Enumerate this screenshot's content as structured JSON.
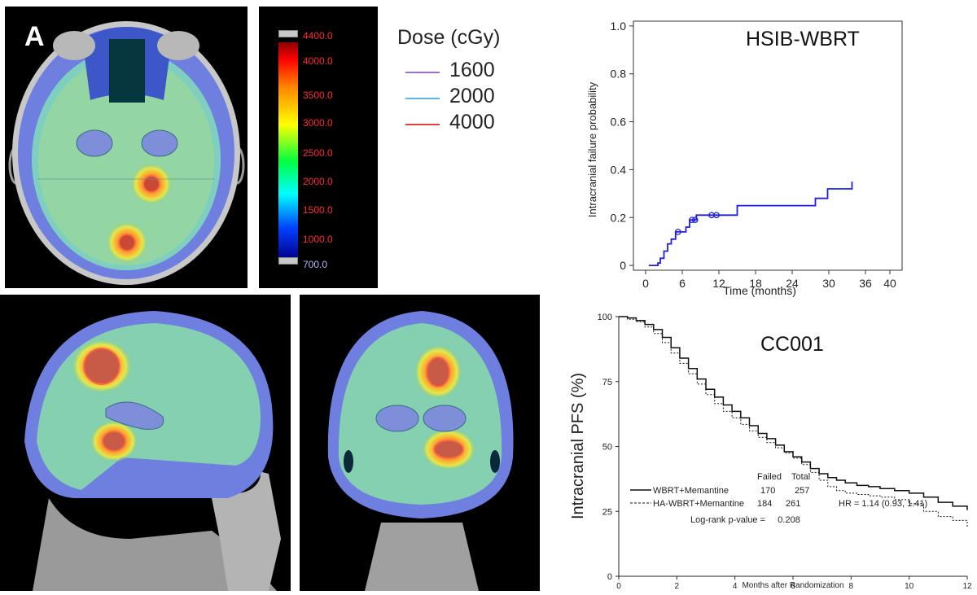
{
  "panel_letter": "A",
  "colorbar": {
    "labels": [
      "4400.0",
      "4000.0",
      "3500.0",
      "3000.0",
      "2500.0",
      "2000.0",
      "1500.0",
      "1000.0",
      "700.0"
    ],
    "colors": {
      "label": "#ff2a2a",
      "bottom_label": "#b8b8ff"
    }
  },
  "dose_legend": {
    "title": "Dose (cGy)",
    "items": [
      {
        "label": "1600",
        "color": "#a070c8"
      },
      {
        "label": "2000",
        "color": "#5ab4e6"
      },
      {
        "label": "4000",
        "color": "#e04040"
      }
    ]
  },
  "chart_data": [
    {
      "type": "line",
      "title": "HSIB-WBRT",
      "xlabel": "Time (months)",
      "ylabel": "Intracranial failure probability",
      "xlim": [
        -2,
        42
      ],
      "ylim": [
        -0.02,
        1.02
      ],
      "xticks": [
        0,
        6,
        12,
        18,
        24,
        30,
        36,
        40
      ],
      "yticks": [
        0,
        0.2,
        0.4,
        0.6,
        0.8,
        1.0
      ],
      "xtick_labels": [
        "0",
        "6",
        "12",
        "18",
        "24",
        "30",
        "36",
        "40"
      ],
      "ytick_labels": [
        "0",
        "0.2",
        "0.4",
        "0.6",
        "0.8",
        "1.0"
      ],
      "grid": false,
      "series": [
        {
          "color": "#1f1fe0",
          "step": true,
          "points": [
            [
              0.5,
              0
            ],
            [
              2.0,
              0
            ],
            [
              2.0,
              0.01
            ],
            [
              2.4,
              0.01
            ],
            [
              2.4,
              0.03
            ],
            [
              3.0,
              0.03
            ],
            [
              3.0,
              0.06
            ],
            [
              3.6,
              0.06
            ],
            [
              3.6,
              0.09
            ],
            [
              4.2,
              0.09
            ],
            [
              4.2,
              0.11
            ],
            [
              4.9,
              0.11
            ],
            [
              4.9,
              0.14
            ],
            [
              6.6,
              0.14
            ],
            [
              6.6,
              0.16
            ],
            [
              7.2,
              0.16
            ],
            [
              7.2,
              0.19
            ],
            [
              8.3,
              0.19
            ],
            [
              8.3,
              0.21
            ],
            [
              15.0,
              0.21
            ],
            [
              15.0,
              0.25
            ],
            [
              27.8,
              0.25
            ],
            [
              27.8,
              0.28
            ],
            [
              29.8,
              0.28
            ],
            [
              29.8,
              0.32
            ],
            [
              33.8,
              0.32
            ],
            [
              33.8,
              0.35
            ]
          ],
          "censored": [
            [
              5.3,
              0.14
            ],
            [
              7.6,
              0.19
            ],
            [
              8.1,
              0.19
            ],
            [
              10.8,
              0.21
            ],
            [
              11.6,
              0.21
            ]
          ]
        }
      ]
    },
    {
      "type": "line",
      "title": "CC001",
      "xlabel": "Months after Randomization",
      "ylabel": "Intracranial PFS (%)",
      "xlim": [
        0,
        12
      ],
      "ylim": [
        0,
        100
      ],
      "xticks": [
        0,
        2,
        4,
        6,
        8,
        10,
        12
      ],
      "yticks": [
        0,
        25,
        50,
        75,
        100
      ],
      "xtick_labels": [
        "0",
        "2",
        "4",
        "6",
        "8",
        "10",
        "12"
      ],
      "ytick_labels": [
        "0",
        "25",
        "50",
        "75",
        "100"
      ],
      "grid": false,
      "table": {
        "headers": [
          "Failed",
          "Total"
        ],
        "rows": [
          {
            "name": "WBRT+Memantine",
            "failed": "170",
            "total": "257"
          },
          {
            "name": "HA-WBRT+Memantine",
            "failed": "184",
            "total": "261"
          }
        ]
      },
      "hr_text": "HR = 1.14 (0.93, 1.41)",
      "pvalue_text": "Log-rank p-value =     0.208",
      "series": [
        {
          "name": "WBRT+Memantine",
          "style": "solid",
          "color": "#111111",
          "points": [
            [
              0,
              100
            ],
            [
              0.3,
              99.5
            ],
            [
              0.6,
              98.5
            ],
            [
              0.9,
              97
            ],
            [
              1.2,
              95
            ],
            [
              1.5,
              92
            ],
            [
              1.8,
              88
            ],
            [
              2.1,
              84
            ],
            [
              2.4,
              80
            ],
            [
              2.7,
              76
            ],
            [
              3.0,
              72
            ],
            [
              3.3,
              69
            ],
            [
              3.6,
              66
            ],
            [
              3.9,
              63.5
            ],
            [
              4.2,
              61
            ],
            [
              4.5,
              58
            ],
            [
              4.8,
              55
            ],
            [
              5.1,
              53
            ],
            [
              5.4,
              50.5
            ],
            [
              5.7,
              48
            ],
            [
              6.0,
              46
            ],
            [
              6.3,
              44
            ],
            [
              6.6,
              41.5
            ],
            [
              6.9,
              39.5
            ],
            [
              7.2,
              38
            ],
            [
              7.5,
              37
            ],
            [
              7.8,
              36
            ],
            [
              8.2,
              35
            ],
            [
              8.6,
              34.5
            ],
            [
              9.0,
              33.8
            ],
            [
              9.5,
              33
            ],
            [
              10.0,
              32
            ],
            [
              10.5,
              30.5
            ],
            [
              11.0,
              28.5
            ],
            [
              11.5,
              27
            ],
            [
              12.0,
              25.5
            ]
          ]
        },
        {
          "name": "HA-WBRT+Memantine",
          "style": "dashed",
          "color": "#111111",
          "points": [
            [
              0,
              100
            ],
            [
              0.3,
              99
            ],
            [
              0.6,
              98
            ],
            [
              0.9,
              96
            ],
            [
              1.2,
              93.5
            ],
            [
              1.5,
              90
            ],
            [
              1.8,
              86
            ],
            [
              2.1,
              82
            ],
            [
              2.4,
              78
            ],
            [
              2.7,
              74
            ],
            [
              3.0,
              70
            ],
            [
              3.3,
              66.5
            ],
            [
              3.6,
              63.5
            ],
            [
              3.9,
              61
            ],
            [
              4.2,
              58.5
            ],
            [
              4.5,
              56
            ],
            [
              4.8,
              53.5
            ],
            [
              5.1,
              51.5
            ],
            [
              5.4,
              49.5
            ],
            [
              5.7,
              47.5
            ],
            [
              6.0,
              45.5
            ],
            [
              6.3,
              43
            ],
            [
              6.6,
              40
            ],
            [
              6.9,
              37
            ],
            [
              7.2,
              34.5
            ],
            [
              7.5,
              33
            ],
            [
              7.8,
              32
            ],
            [
              8.2,
              31.5
            ],
            [
              8.6,
              31
            ],
            [
              9.0,
              30.5
            ],
            [
              9.5,
              29.5
            ],
            [
              10.0,
              28
            ],
            [
              10.5,
              25
            ],
            [
              11.0,
              23
            ],
            [
              11.5,
              21.5
            ],
            [
              12.0,
              19
            ]
          ]
        }
      ]
    }
  ]
}
